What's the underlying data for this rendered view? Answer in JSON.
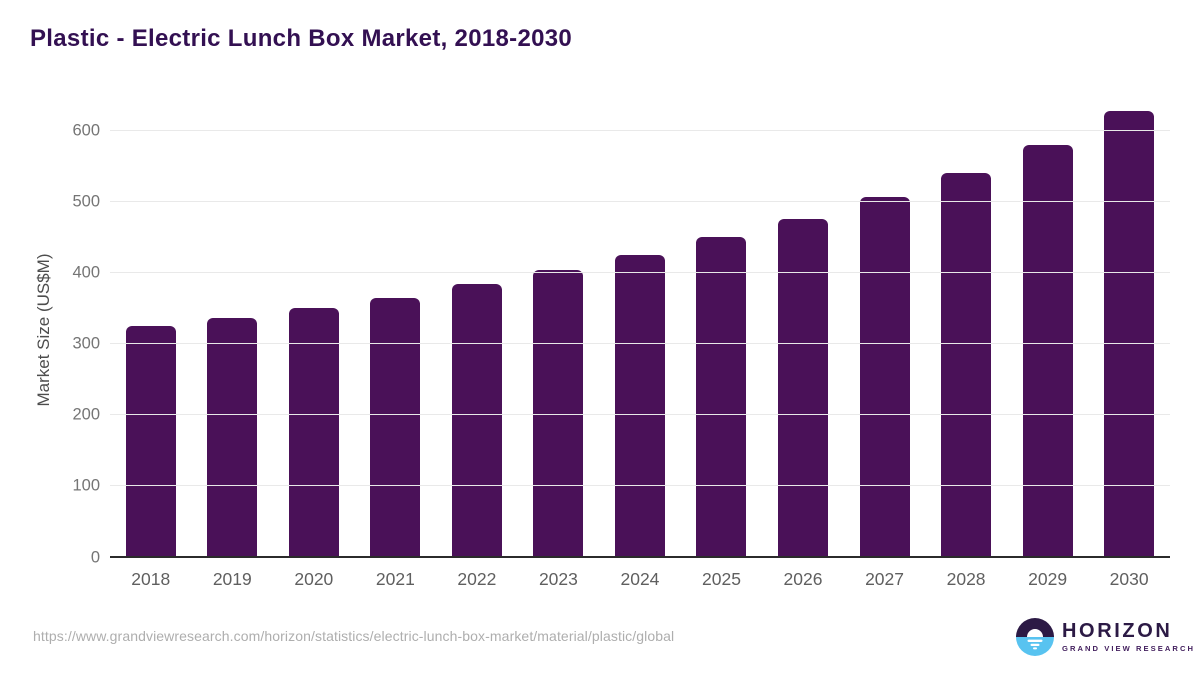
{
  "title": "Plastic - Electric Lunch Box Market, 2018-2030",
  "chart_data": {
    "type": "bar",
    "categories": [
      "2018",
      "2019",
      "2020",
      "2021",
      "2022",
      "2023",
      "2024",
      "2025",
      "2026",
      "2027",
      "2028",
      "2029",
      "2030"
    ],
    "values": [
      325,
      336,
      350,
      365,
      384,
      404,
      425,
      450,
      476,
      507,
      541,
      580,
      627
    ],
    "title": "Plastic - Electric Lunch Box Market, 2018-2030",
    "xlabel": "",
    "ylabel": "Market Size (US$M)",
    "ylim": [
      0,
      650
    ],
    "y_ticks": [
      0,
      100,
      200,
      300,
      400,
      500,
      600
    ],
    "grid": "horizontal-only",
    "legend": "none",
    "bar_corner_radius": "rounded-top"
  },
  "colors": {
    "title": "#331052",
    "bar": "#4a1158",
    "axis_title": "#4d4d4d",
    "y_tick": "#757575",
    "x_tick": "#5f5f5f",
    "grid": "#e9e9e9",
    "baseline": "#2b2b2b",
    "url": "#aeaeae",
    "logo_dark": "#2c1a45",
    "logo_blue": "#58c3f0",
    "logo_subtitle": "#44215f"
  },
  "footer": {
    "source_url": "https://www.grandviewresearch.com/horizon/statistics/electric-lunch-box-market/material/plastic/global",
    "logo": {
      "title": "HORIZON",
      "subtitle": "GRAND VIEW RESEARCH"
    }
  }
}
